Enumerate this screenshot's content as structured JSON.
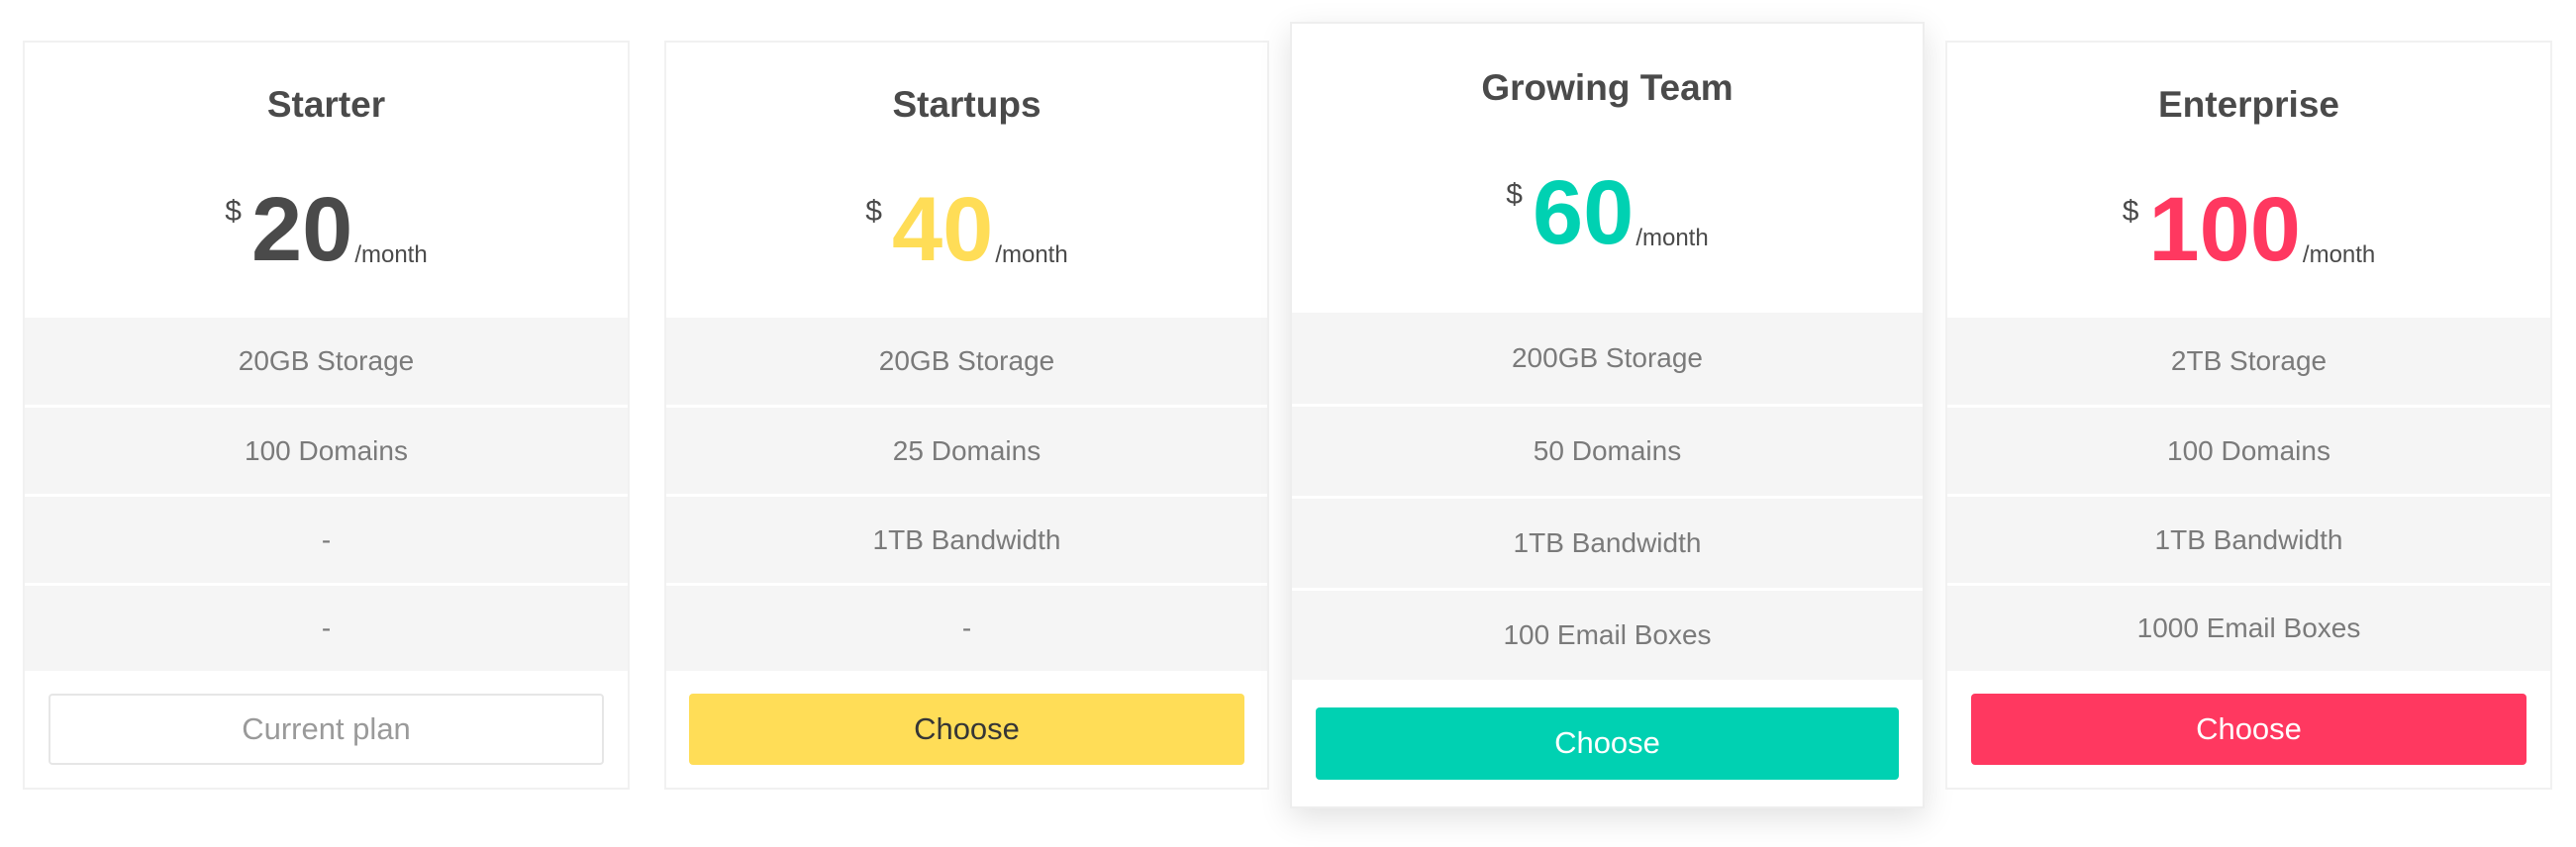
{
  "currency_symbol": "$",
  "period": "/month",
  "plans": [
    {
      "name": "Starter",
      "price": "20",
      "color": "#4a4a4a",
      "features": [
        "20GB Storage",
        "100 Domains",
        "-",
        "-"
      ],
      "button": "Current plan",
      "button_style": "outline"
    },
    {
      "name": "Startups",
      "price": "40",
      "color": "#FFDD57",
      "features": [
        "20GB Storage",
        "25 Domains",
        "1TB Bandwidth",
        "-"
      ],
      "button": "Choose",
      "button_style": "yellow"
    },
    {
      "name": "Growing Team",
      "price": "60",
      "color": "#00D1B2",
      "features": [
        "200GB Storage",
        "50 Domains",
        "1TB Bandwidth",
        "100 Email Boxes"
      ],
      "button": "Choose",
      "button_style": "teal",
      "featured": true
    },
    {
      "name": "Enterprise",
      "price": "100",
      "color": "#FF3860",
      "features": [
        "2TB Storage",
        "100 Domains",
        "1TB Bandwidth",
        "1000 Email Boxes"
      ],
      "button": "Choose",
      "button_style": "red"
    }
  ]
}
